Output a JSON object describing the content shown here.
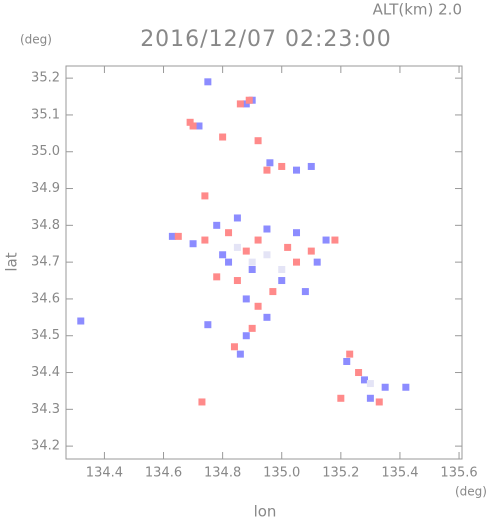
{
  "chart_data": {
    "type": "scatter",
    "title": "2016/12/07 02:23:00",
    "annotation": "ALT(km) 2.0",
    "ylabel": "lat",
    "xlabel": "lon",
    "yunit": "(deg)",
    "xunit": "(deg)",
    "xlim": [
      134.27,
      135.61
    ],
    "ylim": [
      34.165,
      35.233
    ],
    "xticks": [
      134.4,
      134.6,
      134.8,
      135.0,
      135.2,
      135.4,
      135.6
    ],
    "yticks": [
      34.2,
      34.3,
      34.4,
      34.5,
      34.6,
      34.7,
      34.8,
      34.9,
      35.0,
      35.1,
      35.2
    ],
    "series": [
      {
        "color": "#8c8cff",
        "x": [
          134.63,
          134.7,
          134.78,
          134.85,
          134.95,
          135.05,
          135.12,
          135.08,
          135.0,
          134.9,
          134.82,
          134.88,
          134.95,
          134.88,
          134.86,
          134.8,
          135.15,
          134.75,
          134.9,
          134.88,
          134.72,
          134.96,
          135.1,
          135.05,
          134.32,
          134.75,
          135.22,
          135.28,
          135.35,
          135.3,
          135.42
        ],
        "y": [
          34.77,
          34.75,
          34.8,
          34.82,
          34.79,
          34.78,
          34.7,
          34.62,
          34.65,
          34.68,
          34.7,
          34.6,
          34.55,
          34.5,
          34.45,
          34.72,
          34.76,
          35.19,
          35.14,
          35.13,
          35.07,
          34.97,
          34.96,
          34.95,
          34.54,
          34.53,
          34.43,
          34.38,
          34.36,
          34.33,
          34.36
        ]
      },
      {
        "color": "#ff8a8a",
        "x": [
          134.65,
          134.74,
          134.82,
          134.92,
          135.02,
          135.18,
          135.1,
          134.85,
          134.97,
          134.92,
          134.9,
          134.84,
          134.78,
          135.05,
          134.88,
          134.69,
          134.7,
          134.89,
          134.86,
          134.8,
          134.92,
          135.0,
          134.95,
          134.73,
          134.74,
          135.2,
          135.23,
          135.33,
          135.26
        ],
        "y": [
          34.77,
          34.76,
          34.78,
          34.76,
          34.74,
          34.76,
          34.73,
          34.65,
          34.62,
          34.58,
          34.52,
          34.47,
          34.66,
          34.7,
          34.73,
          35.08,
          35.07,
          35.14,
          35.13,
          35.04,
          35.03,
          34.96,
          34.95,
          34.32,
          34.88,
          34.33,
          34.45,
          34.32,
          34.4
        ]
      },
      {
        "color": "#e4e4f6",
        "x": [
          134.9,
          134.95,
          134.85,
          135.0,
          135.3
        ],
        "y": [
          34.7,
          34.72,
          34.74,
          34.68,
          34.37
        ]
      }
    ]
  }
}
